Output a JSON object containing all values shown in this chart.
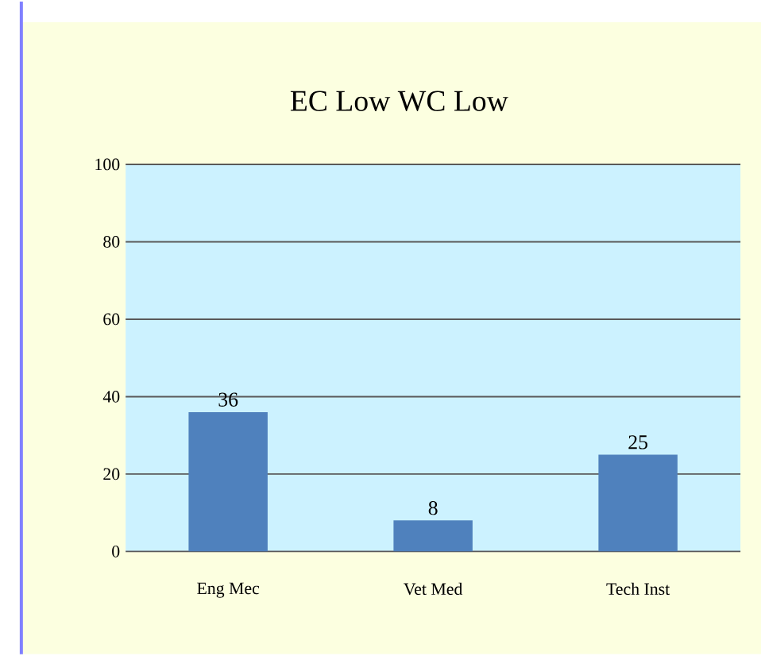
{
  "chart_data": {
    "type": "bar",
    "title": "EC Low WC Low",
    "categories": [
      "Eng Mec",
      "Vet Med",
      "Tech Inst"
    ],
    "values": [
      36,
      8,
      25
    ],
    "color": "#4f81bd",
    "ylim": [
      0,
      100
    ],
    "yticks": [
      0,
      20,
      40,
      60,
      80,
      100
    ],
    "grid": "y",
    "data_labels": true
  }
}
